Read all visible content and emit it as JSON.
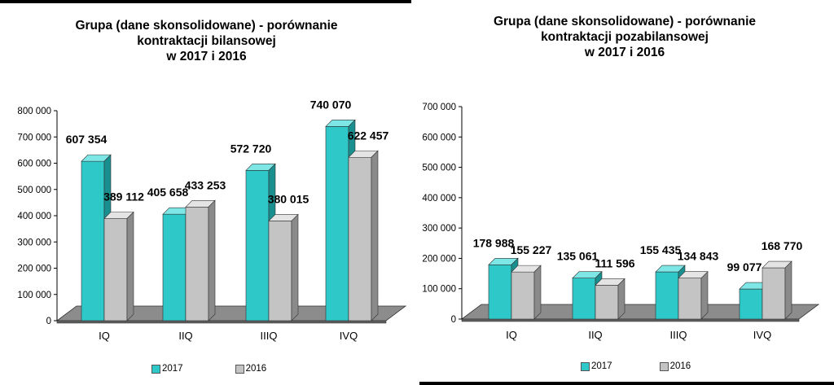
{
  "chart_data": [
    {
      "type": "bar",
      "title_lines": [
        "Grupa (dane skonsolidowane) - porównanie",
        "kontraktacji bilansowej",
        "w 2017 i 2016"
      ],
      "categories": [
        "IQ",
        "IIQ",
        "IIIQ",
        "IVQ"
      ],
      "series": [
        {
          "name": "2017",
          "values": [
            607354,
            405658,
            572720,
            740070
          ],
          "labels": [
            "607 354",
            "405 658",
            "572 720",
            "740 070"
          ]
        },
        {
          "name": "2016",
          "values": [
            389112,
            433253,
            380015,
            622457
          ],
          "labels": [
            "389 112",
            "433 253",
            "380 015",
            "622 457"
          ]
        }
      ],
      "y_ticks": [
        0,
        100000,
        200000,
        300000,
        400000,
        500000,
        600000,
        700000,
        800000
      ],
      "y_tick_labels": [
        "0",
        "100 000",
        "200 000",
        "300 000",
        "400 000",
        "500 000",
        "600 000",
        "700 000",
        "800 000"
      ],
      "ylim": [
        0,
        800000
      ],
      "grid": false,
      "legend_placement": "bottom"
    },
    {
      "type": "bar",
      "title_lines": [
        "Grupa (dane skonsolidowane) - porównanie",
        "kontraktacji pozabilansowej",
        "w 2017 i 2016"
      ],
      "categories": [
        "IQ",
        "IIQ",
        "IIIQ",
        "IVQ"
      ],
      "series": [
        {
          "name": "2017",
          "values": [
            178988,
            135061,
            155435,
            99077
          ],
          "labels": [
            "178 988",
            "135 061",
            "155 435",
            "99 077"
          ]
        },
        {
          "name": "2016",
          "values": [
            155227,
            111596,
            134843,
            168770
          ],
          "labels": [
            "155 227",
            "111 596",
            "134 843",
            "168 770"
          ]
        }
      ],
      "y_ticks": [
        0,
        100000,
        200000,
        300000,
        400000,
        500000,
        600000,
        700000
      ],
      "y_tick_labels": [
        "0",
        "100 000",
        "200 000",
        "300 000",
        "400 000",
        "500 000",
        "600 000",
        "700 000"
      ],
      "ylim": [
        0,
        700000
      ],
      "grid": false,
      "legend_placement": "bottom"
    }
  ],
  "colors": {
    "series_2017": "#2ec8c8",
    "series_2017_top": "#7fe6e6",
    "series_2017_side": "#1a8f8f",
    "series_2016": "#c4c4c4",
    "series_2016_top": "#e4e4e4",
    "series_2016_side": "#8a8a8a",
    "floor": "#8c8c8c",
    "floor_front": "#5e5e5e"
  }
}
